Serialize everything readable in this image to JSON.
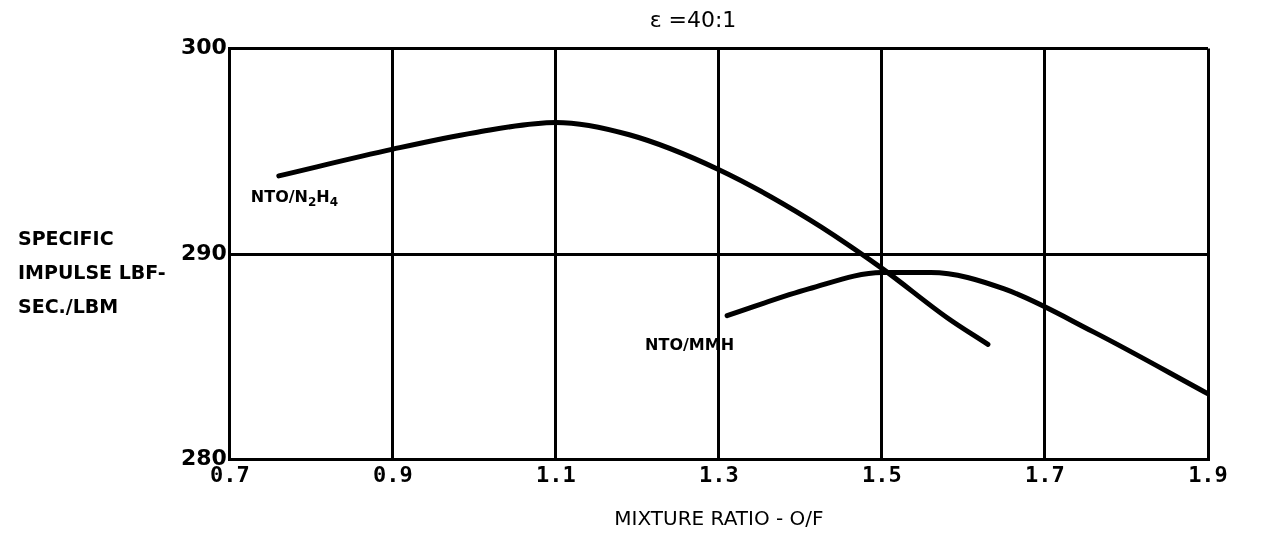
{
  "chart_data": {
    "type": "line",
    "title": "ε =40:1",
    "xlabel": "MIXTURE RATIO - O/F",
    "ylabel": "SPECIFIC IMPULSE LBF-SEC./LBM",
    "xlim": [
      0.7,
      1.9
    ],
    "xticks": [
      {
        "value": 0.7,
        "label": "0.7"
      },
      {
        "value": 0.9,
        "label": "0.9"
      },
      {
        "value": 1.1,
        "label": "1.1"
      },
      {
        "value": 1.3,
        "label": "1.3"
      },
      {
        "value": 1.5,
        "label": "1.5"
      },
      {
        "value": 1.7,
        "label": "1.7"
      },
      {
        "value": 1.9,
        "label": "1.9"
      }
    ],
    "ylim": [
      280,
      300
    ],
    "yticks": [
      280,
      290,
      300
    ],
    "grid": true,
    "legend": false,
    "marker": "none",
    "line_style": "solid",
    "series": [
      {
        "name": "NTO/N$_{2}$H$_{4}$",
        "color": "#000000",
        "x": [
          0.76,
          0.9,
          1.0,
          1.1,
          1.19,
          1.3,
          1.41,
          1.5,
          1.58,
          1.63
        ],
        "values": [
          293.8,
          295.1,
          295.9,
          296.4,
          295.8,
          294.1,
          291.7,
          289.3,
          286.9,
          285.6
        ]
      },
      {
        "name": "NTO/MMH",
        "color": "#000000",
        "x": [
          1.31,
          1.41,
          1.5,
          1.56,
          1.65,
          1.76,
          1.9
        ],
        "values": [
          287.0,
          288.3,
          289.1,
          289.1,
          288.3,
          286.2,
          283.2
        ]
      }
    ]
  }
}
